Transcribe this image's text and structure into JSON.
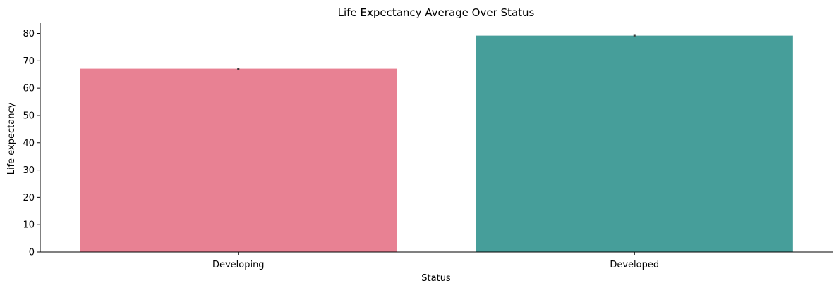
{
  "chart_data": {
    "type": "bar",
    "title": "Life Expectancy Average Over Status",
    "xlabel": "Status",
    "ylabel": "Life expectancy",
    "categories": [
      "Developing",
      "Developed"
    ],
    "values": [
      67.1,
      79.2
    ],
    "error_bars": [
      [
        66.7,
        67.5
      ],
      [
        78.9,
        79.5
      ]
    ],
    "colors": [
      "#e88193",
      "#469e9a"
    ],
    "error_color": "#3b3b3b",
    "ylim": [
      0,
      84
    ],
    "yticks": [
      0,
      10,
      20,
      30,
      40,
      50,
      60,
      70,
      80
    ],
    "grid": false,
    "legend": "none"
  }
}
